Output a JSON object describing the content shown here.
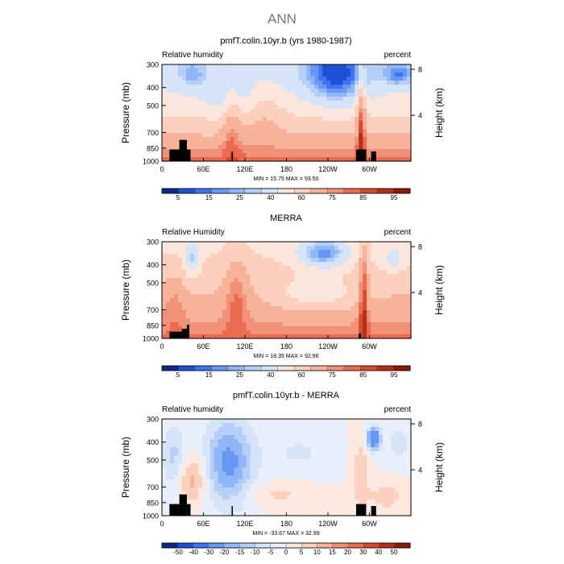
{
  "figure": {
    "title": "ANN"
  },
  "colorbars": {
    "absolute": {
      "colors": [
        "#0a2b8a",
        "#1e4fd6",
        "#3d74f2",
        "#6797f5",
        "#90b6f7",
        "#b5cff8",
        "#d6e4f7",
        "#fbe6dc",
        "#fbd0bc",
        "#f7b39a",
        "#f1917a",
        "#ea6b50",
        "#d84a2c",
        "#b52f18",
        "#8c1807"
      ],
      "tick_labels": [
        "5",
        "15",
        "25",
        "40",
        "60",
        "75",
        "85",
        "95"
      ]
    },
    "difference": {
      "colors": [
        "#0a2b8a",
        "#1e4fd6",
        "#3d74f2",
        "#6797f5",
        "#90b6f7",
        "#b5cff8",
        "#d6e4f7",
        "#e9f0fb",
        "#fde9e1",
        "#fbd0bc",
        "#f7b39a",
        "#f1917a",
        "#ea6b50",
        "#d84a2c",
        "#b52f18",
        "#8c1807"
      ],
      "tick_labels": [
        "-50",
        "-40",
        "-30",
        "-20",
        "-15",
        "-10",
        "-5",
        "0",
        "5",
        "10",
        "15",
        "20",
        "30",
        "40",
        "50"
      ]
    }
  },
  "chart_data": [
    {
      "type": "heatmap",
      "title": "pmfT.colin.10yr.b (yrs 1980-1987)",
      "left_label": "Relative humidity",
      "right_label": "percent",
      "ylabel": "Pressure (mb)",
      "ylabel_right": "Height (km)",
      "x_tick_labels": [
        "0",
        "60E",
        "120E",
        "180",
        "120W",
        "60W"
      ],
      "x_tick_positions_deg": [
        0,
        60,
        120,
        180,
        240,
        300
      ],
      "xlim": [
        0,
        360
      ],
      "y_tick_labels": [
        "300",
        "400",
        "500",
        "700",
        "850",
        "1000"
      ],
      "y_ticks": [
        300,
        400,
        500,
        700,
        850,
        1000
      ],
      "ylim": [
        1000,
        300
      ],
      "y_scale": "log",
      "height_ticks_km": [
        8,
        4
      ],
      "stats": {
        "min_label": "MIN = ",
        "min": "15.75",
        "max_label": "MAX = ",
        "max": "93.50"
      },
      "colorbar": "absolute"
    },
    {
      "type": "heatmap",
      "title": "MERRA",
      "left_label": "Relative Humidity",
      "right_label": "percent",
      "ylabel": "Pressure (mb)",
      "ylabel_right": "Height (km)",
      "x_tick_labels": [
        "0",
        "60E",
        "120E",
        "180",
        "120W",
        "60W"
      ],
      "x_tick_positions_deg": [
        0,
        60,
        120,
        180,
        240,
        300
      ],
      "xlim": [
        0,
        360
      ],
      "y_tick_labels": [
        "300",
        "400",
        "500",
        "700",
        "850",
        "1000"
      ],
      "y_ticks": [
        300,
        400,
        500,
        700,
        850,
        1000
      ],
      "ylim": [
        1000,
        300
      ],
      "y_scale": "log",
      "height_ticks_km": [
        8,
        4
      ],
      "stats": {
        "min_label": "MIN = ",
        "min": "18.35",
        "max_label": "MAX = ",
        "max": "92.96"
      },
      "colorbar": "absolute"
    },
    {
      "type": "heatmap",
      "title": "pmfT.colin.10yr.b - MERRA",
      "left_label": "Relative humidity",
      "right_label": "percent",
      "ylabel": "Pressure (mb)",
      "ylabel_right": "Height (km)",
      "x_tick_labels": [
        "0",
        "60E",
        "120E",
        "180",
        "120W",
        "60W"
      ],
      "x_tick_positions_deg": [
        0,
        60,
        120,
        180,
        240,
        300
      ],
      "xlim": [
        0,
        360
      ],
      "y_tick_labels": [
        "300",
        "400",
        "500",
        "700",
        "850",
        "1000"
      ],
      "y_ticks": [
        300,
        400,
        500,
        700,
        850,
        1000
      ],
      "ylim": [
        1000,
        300
      ],
      "y_scale": "log",
      "height_ticks_km": [
        8,
        4
      ],
      "stats": {
        "min_label": "MIN = ",
        "min": "-33.67",
        "max_label": "MAX = ",
        "max": "32.99"
      },
      "colorbar": "difference"
    }
  ]
}
